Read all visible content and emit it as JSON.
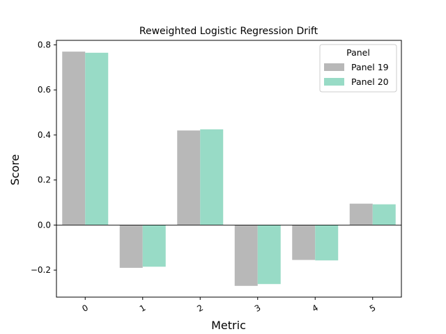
{
  "chart_data": {
    "type": "bar",
    "title": "Reweighted Logistic Regression Drift",
    "xlabel": "Metric",
    "ylabel": "Score",
    "categories": [
      "0",
      "1",
      "2",
      "3",
      "4",
      "5"
    ],
    "series": [
      {
        "name": "Panel 19",
        "color": "#b8b8b8",
        "values": [
          0.77,
          -0.19,
          0.42,
          -0.27,
          -0.155,
          0.095
        ]
      },
      {
        "name": "Panel 20",
        "color": "#98dbc6",
        "values": [
          0.765,
          -0.185,
          0.425,
          -0.262,
          -0.157,
          0.092
        ]
      }
    ],
    "ylim": [
      -0.32,
      0.82
    ],
    "yticks": [
      -0.2,
      0.0,
      0.2,
      0.4,
      0.6,
      0.8
    ],
    "ytick_labels": [
      "−0.2",
      "0.0",
      "0.2",
      "0.4",
      "0.6",
      "0.8"
    ],
    "legend": {
      "title": "Panel",
      "placement": "top-right"
    },
    "zero_line": true,
    "grid": false
  }
}
